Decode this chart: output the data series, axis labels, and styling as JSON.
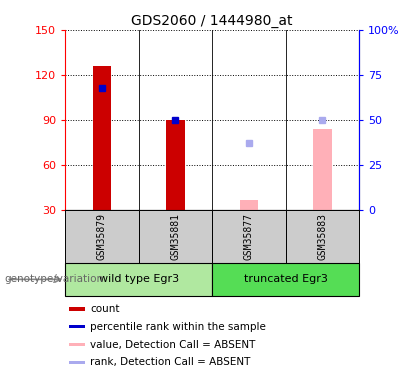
{
  "title": "GDS2060 / 1444980_at",
  "samples": [
    "GSM35879",
    "GSM35881",
    "GSM35877",
    "GSM35883"
  ],
  "bar_data": {
    "GSM35879": {
      "count": 126,
      "rank_pct": 68,
      "type": "present"
    },
    "GSM35881": {
      "count": 90,
      "rank_pct": 50,
      "type": "present"
    },
    "GSM35877": {
      "value_absent": 37,
      "rank_absent_pct": 37,
      "type": "absent"
    },
    "GSM35883": {
      "value_absent": 84,
      "rank_absent_pct": 50,
      "type": "absent"
    }
  },
  "groups": [
    {
      "label": "wild type Egr3",
      "indices": [
        0,
        1
      ],
      "color": "#b0e8a0"
    },
    {
      "label": "truncated Egr3",
      "indices": [
        2,
        3
      ],
      "color": "#55dd55"
    }
  ],
  "ylim_left": [
    30,
    150
  ],
  "ylim_right": [
    0,
    100
  ],
  "yticks_left": [
    30,
    60,
    90,
    120,
    150
  ],
  "yticks_right": [
    0,
    25,
    50,
    75,
    100
  ],
  "yticklabels_right": [
    "0",
    "25",
    "50",
    "75",
    "100%"
  ],
  "colors": {
    "count_present": "#cc0000",
    "rank_present": "#0000cc",
    "value_absent": "#ffb0b8",
    "rank_absent": "#aaaaee",
    "sample_bg": "#cccccc",
    "group_wt": "#b8f0b0",
    "group_trunc": "#44dd44"
  },
  "bar_width": 0.25,
  "rank_square_size": 4,
  "group_label": "genotype/variation",
  "legend": [
    {
      "label": "count",
      "color": "#cc0000"
    },
    {
      "label": "percentile rank within the sample",
      "color": "#0000cc"
    },
    {
      "label": "value, Detection Call = ABSENT",
      "color": "#ffb0b8"
    },
    {
      "label": "rank, Detection Call = ABSENT",
      "color": "#aaaaee"
    }
  ]
}
